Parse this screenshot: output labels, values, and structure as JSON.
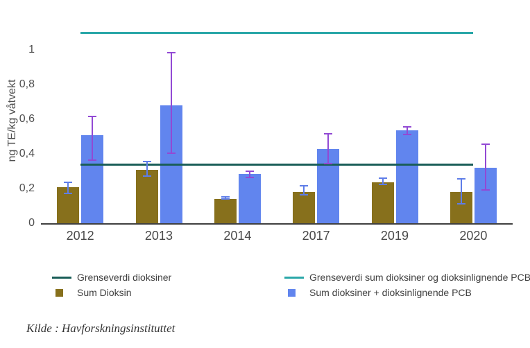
{
  "chart_data": {
    "type": "bar",
    "title": "",
    "ylabel": "ng TE/kg våtvekt",
    "ylim": [
      0,
      1.2
    ],
    "grid": false,
    "legend_position": "bottom",
    "yticks": [
      {
        "value": 0,
        "label": "0"
      },
      {
        "value": 0.2,
        "label": "0,2"
      },
      {
        "value": 0.4,
        "label": "0,4"
      },
      {
        "value": 0.6,
        "label": "0,6"
      },
      {
        "value": 0.8,
        "label": "0,8"
      },
      {
        "value": 1,
        "label": "1"
      }
    ],
    "categories": [
      "2012",
      "2013",
      "2014",
      "2017",
      "2019",
      "2020"
    ],
    "series": [
      {
        "name": "Sum Dioksin",
        "color": "#87701c",
        "values": [
          0.21,
          0.31,
          0.14,
          0.18,
          0.235,
          0.18
        ],
        "error_color": "#5e7de8",
        "error_low": [
          0.17,
          0.27,
          0.135,
          0.16,
          0.22,
          0.11
        ],
        "error_high": [
          0.24,
          0.36,
          0.155,
          0.22,
          0.265,
          0.26
        ]
      },
      {
        "name": "Sum dioksiner + dioksinlignende PCB",
        "color": "#6185ee",
        "values": [
          0.51,
          0.68,
          0.285,
          0.43,
          0.535,
          0.32
        ],
        "error_color": "#9249d4",
        "error_low": [
          0.36,
          0.4,
          0.26,
          0.34,
          0.51,
          0.19
        ],
        "error_high": [
          0.62,
          0.99,
          0.305,
          0.52,
          0.56,
          0.46
        ]
      }
    ],
    "reference_lines": [
      {
        "name": "Grenseverdi dioksiner",
        "value": 0.34,
        "color": "#1a5e58"
      },
      {
        "name": "Grenseverdi sum dioksiner og dioksinlignende PCB",
        "value": 1.1,
        "color": "#2aa7a8"
      }
    ]
  },
  "source": {
    "caption": "Kilde : Havforskningsinstituttet"
  },
  "colors": {
    "background": "#ffffff",
    "axis_line": "#404040",
    "tick_label": "#4f4f4f"
  }
}
